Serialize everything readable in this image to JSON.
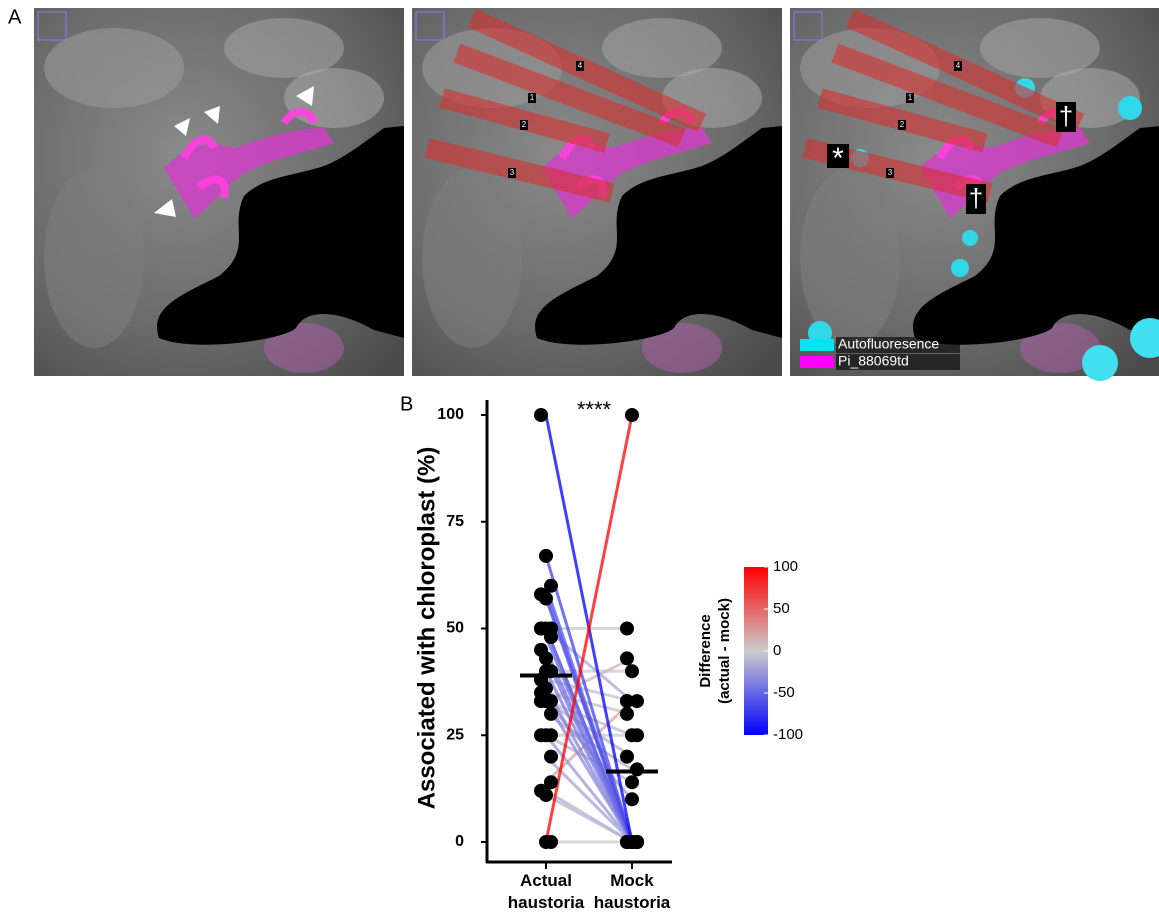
{
  "panel_a": {
    "label": "A",
    "roi_labels": [
      "4",
      "1",
      "2",
      "3"
    ],
    "marker_star": "*",
    "marker_dagger": "†",
    "legend": [
      {
        "name": "Autofluoresence",
        "color": "#00e5f0"
      },
      {
        "name": "Pi_88069td",
        "color": "#ff00ff"
      }
    ]
  },
  "chart_data": {
    "type": "paired_dot",
    "panel_label": "B",
    "ylabel": "Associated with chloroplast (%)",
    "categories": [
      "Actual haustoria",
      "Mock haustoria"
    ],
    "values": [
      [
        100,
        0,
        0,
        50,
        67,
        60,
        58,
        57,
        50,
        50,
        50,
        48,
        45,
        43,
        40,
        38,
        36,
        33,
        33,
        33,
        30,
        25,
        25,
        20,
        12,
        11,
        14,
        33,
        40,
        25,
        35,
        33
      ],
      [
        0,
        100,
        0,
        50,
        0,
        0,
        0,
        0,
        0,
        33,
        0,
        0,
        0,
        0,
        0,
        33,
        0,
        0,
        20,
        25,
        17,
        0,
        14,
        0,
        0,
        0,
        33,
        43,
        40,
        25,
        30,
        10
      ]
    ],
    "means": [
      39,
      16.5
    ],
    "annotation": "****",
    "ylim": [
      0,
      100
    ],
    "yticks": [
      0,
      25,
      50,
      75,
      100
    ],
    "colorbar_title": [
      "Difference",
      "(actual - mock)"
    ],
    "colorlim": [
      -100,
      100
    ],
    "colorbar_ticks": [
      100,
      50,
      0,
      -50,
      -100
    ],
    "colors": [
      "#0000ff",
      "#cccccc",
      "#ff0000"
    ]
  }
}
